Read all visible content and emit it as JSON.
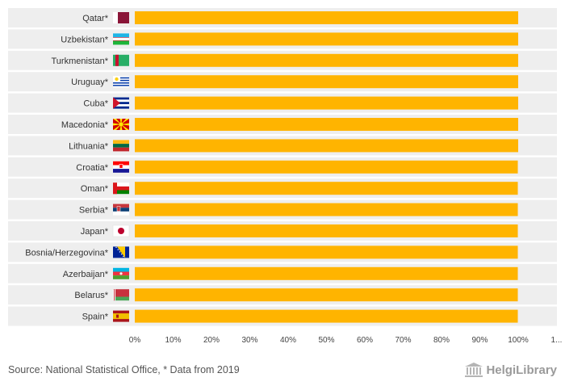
{
  "chart_data": {
    "type": "bar",
    "orientation": "horizontal",
    "categories": [
      "Qatar*",
      "Uzbekistan*",
      "Turkmenistan*",
      "Uruguay*",
      "Cuba*",
      "Macedonia*",
      "Lithuania*",
      "Croatia*",
      "Oman*",
      "Serbia*",
      "Japan*",
      "Bosnia/Herzegovina*",
      "Azerbaijan*",
      "Belarus*",
      "Spain*"
    ],
    "values": [
      100,
      100,
      100,
      100,
      100,
      100,
      100,
      99.9,
      99.9,
      99.9,
      99.9,
      99.9,
      99.9,
      99.9,
      99.9
    ],
    "xlim": [
      0,
      110
    ],
    "x_ticks": [
      "0%",
      "10%",
      "20%",
      "30%",
      "40%",
      "50%",
      "60%",
      "70%",
      "80%",
      "90%",
      "100%",
      "1..."
    ],
    "bar_color": "#ffb400",
    "band_color": "#eeeeee",
    "grid": false,
    "legend": "none"
  },
  "flags": [
    "qatar-flag-icon",
    "uzbekistan-flag-icon",
    "turkmenistan-flag-icon",
    "uruguay-flag-icon",
    "cuba-flag-icon",
    "macedonia-flag-icon",
    "lithuania-flag-icon",
    "croatia-flag-icon",
    "oman-flag-icon",
    "serbia-flag-icon",
    "japan-flag-icon",
    "bosnia-herzegovina-flag-icon",
    "azerbaijan-flag-icon",
    "belarus-flag-icon",
    "spain-flag-icon"
  ],
  "footer": {
    "source": "Source: National Statistical Office, * Data from 2019",
    "brand": "HelgiLibrary"
  }
}
